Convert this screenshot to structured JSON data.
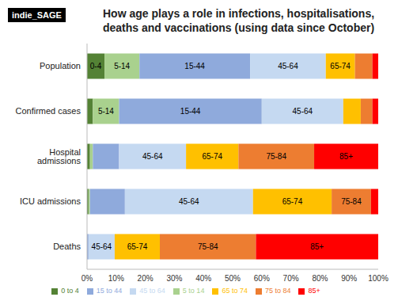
{
  "chart_data": {
    "type": "bar",
    "orientation": "horizontal",
    "stacked": true,
    "grid": false,
    "legend": "bottom",
    "title": "How age plays a role in infections, hospitalisations, deaths and vaccinations (using data since October)",
    "source": "indie_SAGE",
    "categories": [
      "Population",
      "Confirmed cases",
      "Hospital admissions",
      "ICU admissions",
      "Deaths"
    ],
    "series": [
      {
        "name": "0 to 4",
        "color": "#548235",
        "values": [
          6,
          2,
          1,
          0.5,
          0
        ]
      },
      {
        "name": "5 to 14",
        "color": "#a9d18e",
        "values": [
          12,
          9,
          1,
          0.5,
          0
        ]
      },
      {
        "name": "15 to 44",
        "color": "#8faadc",
        "values": [
          38,
          49,
          9,
          12,
          0.5
        ]
      },
      {
        "name": "45 to 64",
        "color": "#c5d9f1",
        "values": [
          26,
          28,
          23,
          44,
          9
        ]
      },
      {
        "name": "65 to 74",
        "color": "#ffc000",
        "values": [
          10,
          6,
          18,
          27,
          15.5
        ]
      },
      {
        "name": "75 to 84",
        "color": "#ed7d31",
        "values": [
          6,
          4,
          26,
          13.5,
          33
        ]
      },
      {
        "name": "85+",
        "color": "#ff0000",
        "values": [
          2,
          2,
          22,
          2.5,
          42
        ]
      }
    ],
    "xlim": [
      0,
      100
    ],
    "xticks": [
      {
        "value": 0,
        "label": "0%"
      },
      {
        "value": 10,
        "label": "10%"
      },
      {
        "value": 20,
        "label": "20%"
      },
      {
        "value": 30,
        "label": "30%"
      },
      {
        "value": 40,
        "label": "40%"
      },
      {
        "value": 50,
        "label": "50%"
      },
      {
        "value": 60,
        "label": "60%"
      },
      {
        "value": 70,
        "label": "70%"
      },
      {
        "value": 80,
        "label": "80%"
      },
      {
        "value": 90,
        "label": "90%"
      },
      {
        "value": 100,
        "label": "100%"
      }
    ],
    "annotations": [
      {
        "category": "Population",
        "series": "0 to 4",
        "text": "0-4"
      },
      {
        "category": "Population",
        "series": "5 to 14",
        "text": "5-14"
      },
      {
        "category": "Population",
        "series": "15 to 44",
        "text": "15-44"
      },
      {
        "category": "Population",
        "series": "45 to 64",
        "text": "45-64"
      },
      {
        "category": "Population",
        "series": "65 to 74",
        "text": "65-74"
      },
      {
        "category": "Confirmed cases",
        "series": "5 to 14",
        "text": "5-14"
      },
      {
        "category": "Confirmed cases",
        "series": "15 to 44",
        "text": "15-44"
      },
      {
        "category": "Confirmed cases",
        "series": "45 to 64",
        "text": "45-64"
      },
      {
        "category": "Hospital admissions",
        "series": "45 to 64",
        "text": "45-64"
      },
      {
        "category": "Hospital admissions",
        "series": "65 to 74",
        "text": "65-74"
      },
      {
        "category": "Hospital admissions",
        "series": "75 to 84",
        "text": "75-84"
      },
      {
        "category": "Hospital admissions",
        "series": "85+",
        "text": "85+"
      },
      {
        "category": "ICU admissions",
        "series": "45 to 64",
        "text": "45-64"
      },
      {
        "category": "ICU admissions",
        "series": "65 to 74",
        "text": "65-74"
      },
      {
        "category": "ICU admissions",
        "series": "75 to 84",
        "text": "75-84"
      },
      {
        "category": "Deaths",
        "series": "45 to 64",
        "text": "45-64"
      },
      {
        "category": "Deaths",
        "series": "65 to 74",
        "text": "65-74"
      },
      {
        "category": "Deaths",
        "series": "75 to 84",
        "text": "75-84"
      },
      {
        "category": "Deaths",
        "series": "85+",
        "text": "85+"
      }
    ]
  }
}
